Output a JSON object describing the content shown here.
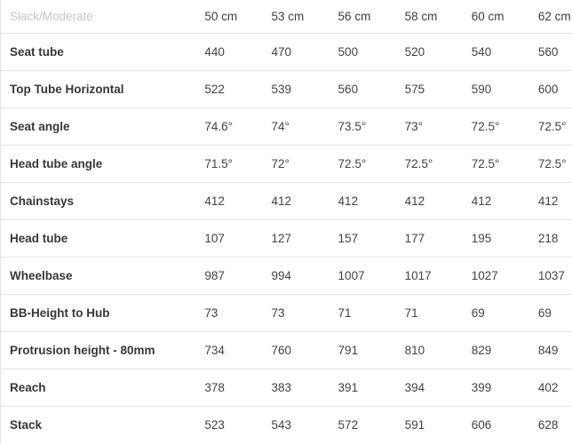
{
  "chart_data": {
    "type": "table",
    "corner_label": "Slack/Moderate",
    "columns": [
      "50 cm",
      "53 cm",
      "56 cm",
      "58 cm",
      "60 cm",
      "62 cm"
    ],
    "rows": [
      {
        "label": "Seat tube",
        "values": [
          "440",
          "470",
          "500",
          "520",
          "540",
          "560"
        ]
      },
      {
        "label": "Top Tube Horizontal",
        "values": [
          "522",
          "539",
          "560",
          "575",
          "590",
          "600"
        ]
      },
      {
        "label": "Seat angle",
        "values": [
          "74.6°",
          "74°",
          "73.5°",
          "73°",
          "72.5°",
          "72.5°"
        ]
      },
      {
        "label": "Head tube angle",
        "values": [
          "71.5°",
          "72°",
          "72.5°",
          "72.5°",
          "72.5°",
          "72.5°"
        ]
      },
      {
        "label": "Chainstays",
        "values": [
          "412",
          "412",
          "412",
          "412",
          "412",
          "412"
        ]
      },
      {
        "label": "Head tube",
        "values": [
          "107",
          "127",
          "157",
          "177",
          "195",
          "218"
        ]
      },
      {
        "label": "Wheelbase",
        "values": [
          "987",
          "994",
          "1007",
          "1017",
          "1027",
          "1037"
        ]
      },
      {
        "label": "BB-Height to Hub",
        "values": [
          "73",
          "73",
          "71",
          "71",
          "69",
          "69"
        ]
      },
      {
        "label": "Protrusion height - 80mm",
        "values": [
          "734",
          "760",
          "791",
          "810",
          "829",
          "849"
        ]
      },
      {
        "label": "Reach",
        "values": [
          "378",
          "383",
          "391",
          "394",
          "399",
          "402"
        ]
      },
      {
        "label": "Stack",
        "values": [
          "523",
          "543",
          "572",
          "591",
          "606",
          "628"
        ]
      }
    ],
    "layout_hints": {
      "grid": "horizontal-rules-only",
      "legend_position": "none"
    },
    "colors": {
      "separator": "#e2e2e2",
      "corner_label_text": "#c6c6c6",
      "column_header_text": "#3e3e3e",
      "row_label_text": "#383838",
      "value_text": "#434343",
      "background": "#ffffff"
    }
  }
}
